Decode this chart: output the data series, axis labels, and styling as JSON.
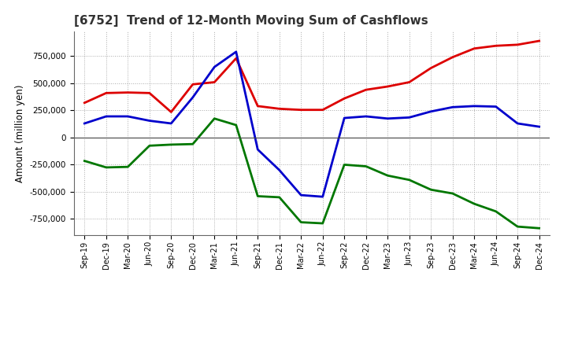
{
  "title": "[6752]  Trend of 12-Month Moving Sum of Cashflows",
  "ylabel": "Amount (million yen)",
  "background_color": "#ffffff",
  "grid_color": "#aaaaaa",
  "x_labels": [
    "Sep-19",
    "Dec-19",
    "Mar-20",
    "Jun-20",
    "Sep-20",
    "Dec-20",
    "Mar-21",
    "Jun-21",
    "Sep-21",
    "Dec-21",
    "Mar-22",
    "Jun-22",
    "Sep-22",
    "Dec-22",
    "Mar-23",
    "Jun-23",
    "Sep-23",
    "Dec-23",
    "Mar-24",
    "Jun-24",
    "Sep-24",
    "Dec-24"
  ],
  "operating": [
    320000,
    410000,
    415000,
    410000,
    235000,
    490000,
    510000,
    730000,
    290000,
    265000,
    255000,
    255000,
    360000,
    440000,
    470000,
    510000,
    640000,
    740000,
    820000,
    845000,
    855000,
    890000
  ],
  "investing": [
    -215000,
    -275000,
    -270000,
    -75000,
    -65000,
    -60000,
    175000,
    115000,
    -540000,
    -550000,
    -780000,
    -790000,
    -250000,
    -265000,
    -350000,
    -390000,
    -480000,
    -515000,
    -610000,
    -680000,
    -820000,
    -835000
  ],
  "free": [
    130000,
    195000,
    195000,
    155000,
    130000,
    370000,
    650000,
    790000,
    -110000,
    -300000,
    -530000,
    -545000,
    180000,
    195000,
    175000,
    185000,
    240000,
    280000,
    290000,
    285000,
    130000,
    100000
  ],
  "ylim": [
    -900000,
    980000
  ],
  "yticks": [
    -750000,
    -500000,
    -250000,
    0,
    250000,
    500000,
    750000
  ],
  "line_colors": {
    "operating": "#dd0000",
    "investing": "#007700",
    "free": "#0000cc"
  },
  "line_width": 2.0
}
